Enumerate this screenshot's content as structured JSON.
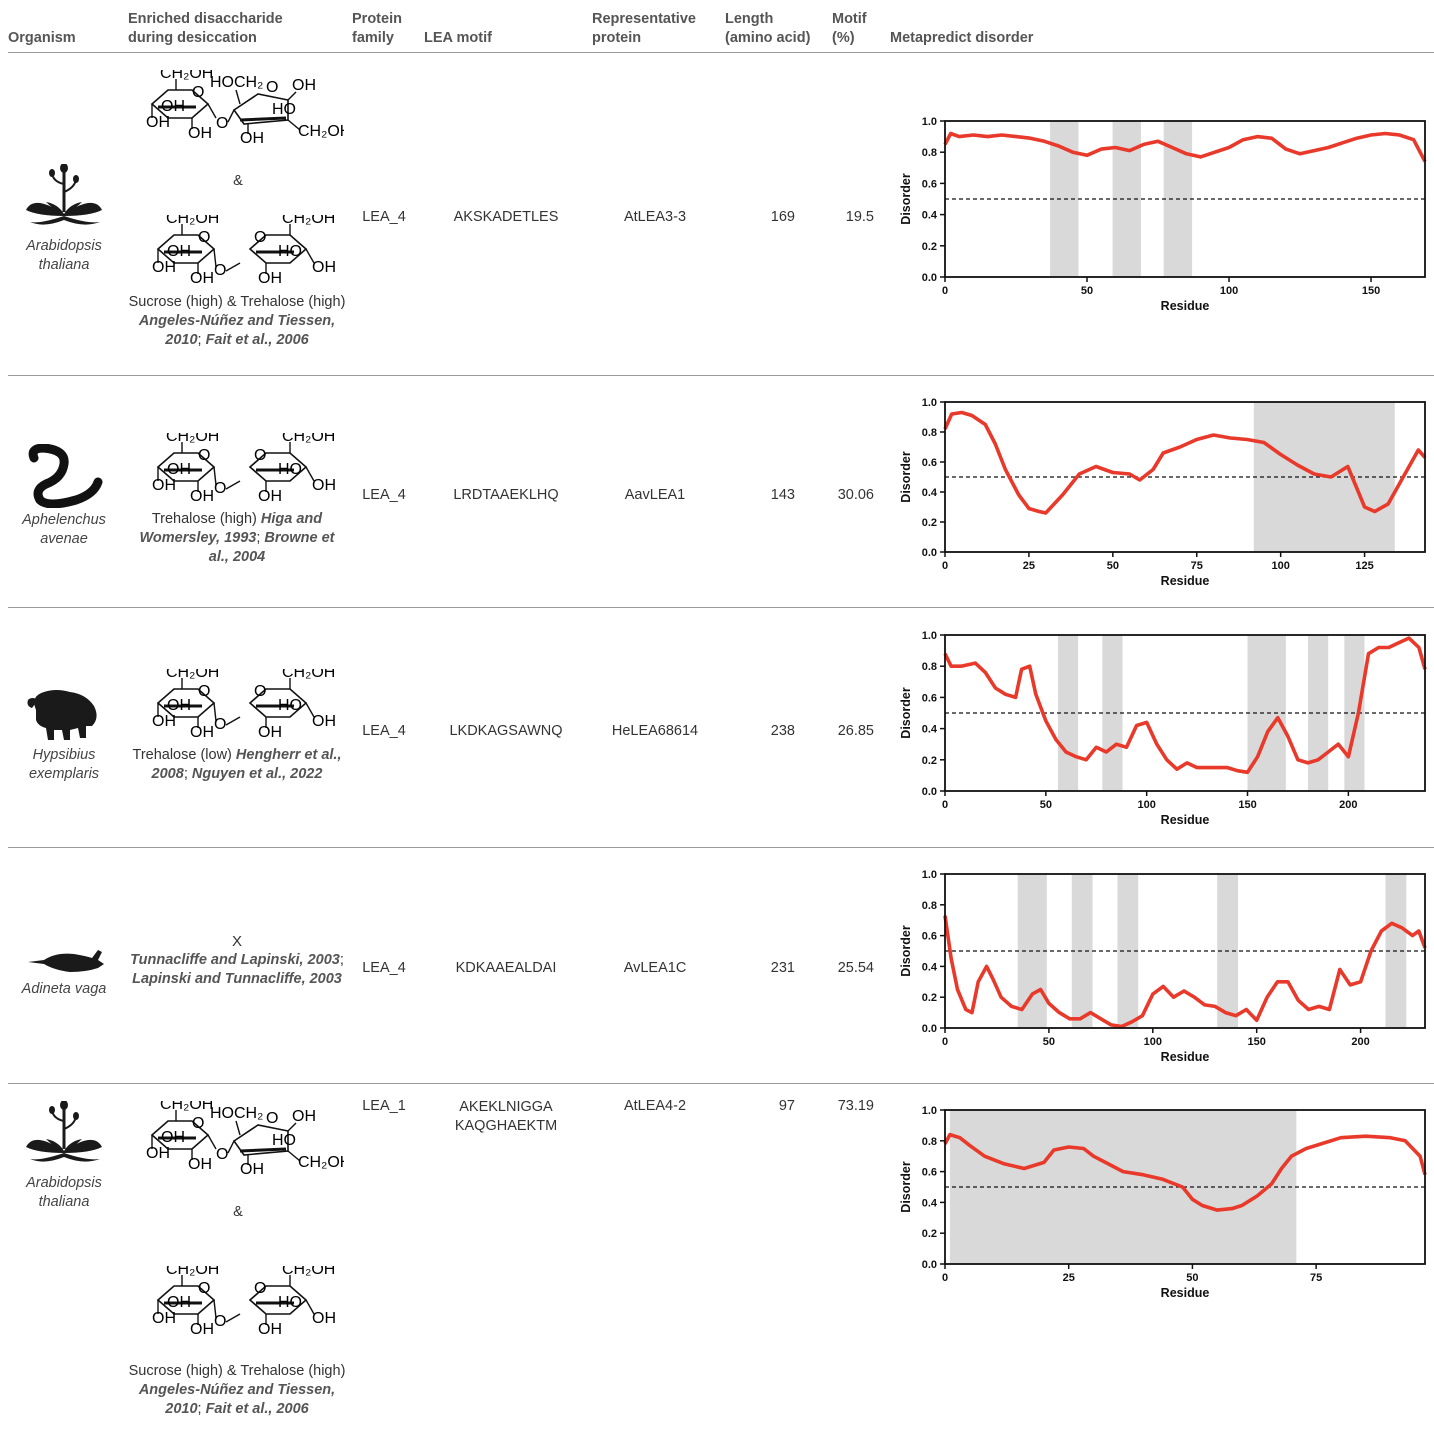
{
  "headers": {
    "organism": "Organism",
    "disaccharide": [
      "Enriched disaccharide",
      "during desiccation"
    ],
    "family": [
      "Protein",
      "family"
    ],
    "motif": "LEA motif",
    "representative": [
      "Representative",
      "protein"
    ],
    "length": [
      "Length",
      "(amino acid)"
    ],
    "motif_pct": [
      "Motif",
      "(%)"
    ],
    "metapredict": "Metapredict disorder"
  },
  "rows": [
    {
      "organism": [
        "Arabidopsis",
        "thaliana"
      ],
      "organism_icon": "plant-silhouette-icon",
      "sugars": "sucrose-and-trehalose",
      "amp": "&",
      "sugar_text": "Sucrose (high) & Trehalose (high)",
      "refs": [
        "Angeles-Núñez and Tiessen, 2010",
        "Fait et al., 2006"
      ],
      "family": "LEA_4",
      "motif": "AKSKADETLES",
      "protein": "AtLEA3-3",
      "length": "169",
      "motif_pct": "19.5"
    },
    {
      "organism": [
        "Aphelenchus",
        "avenae"
      ],
      "organism_icon": "nematode-silhouette-icon",
      "sugars": "trehalose",
      "sugar_text": "Trehalose (high)",
      "refs": [
        "Higa and Womersley, 1993",
        "Browne et al., 2004"
      ],
      "family": "LEA_4",
      "motif": "LRDTAAEKLHQ",
      "protein": "AavLEA1",
      "length": "143",
      "motif_pct": "30.06"
    },
    {
      "organism": [
        "Hypsibius",
        "exemplaris"
      ],
      "organism_icon": "tardigrade-silhouette-icon",
      "sugars": "trehalose",
      "sugar_text": "Trehalose (low)",
      "refs": [
        "Hengherr et al., 2008",
        "Nguyen et al., 2022"
      ],
      "family": "LEA_4",
      "motif": "LKDKAGSAWNQ",
      "protein": "HeLEA68614",
      "length": "238",
      "motif_pct": "26.85"
    },
    {
      "organism": [
        "Adineta vaga"
      ],
      "organism_icon": "rotifer-silhouette-icon",
      "sugars": "none",
      "sugar_text": "X",
      "refs": [
        "Tunnacliffe and Lapinski, 2003",
        "Lapinski and Tunnacliffe, 2003"
      ],
      "family": "LEA_4",
      "motif": "KDKAAEALDAI",
      "protein": "AvLEA1C",
      "length": "231",
      "motif_pct": "25.54"
    },
    {
      "organism": [
        "Arabidopsis",
        "thaliana"
      ],
      "organism_icon": "plant-silhouette-icon",
      "sugars": "sucrose-and-trehalose",
      "amp": "&",
      "sugar_text": "Sucrose (high) & Trehalose (high)",
      "refs": [
        "Angeles-Núñez and Tiessen, 2010",
        "Fait et al., 2006"
      ],
      "family": "LEA_1",
      "motif": [
        "AKEKLNIGGA",
        "KAQGHAEKTM"
      ],
      "protein": "AtLEA4-2",
      "length": "97",
      "motif_pct": "73.19"
    }
  ],
  "chart_data": [
    {
      "type": "line",
      "xlabel": "Residue",
      "ylabel": "Disorder",
      "xlim": [
        0,
        169
      ],
      "ylim": [
        0,
        1.0
      ],
      "xticks": [
        0,
        50,
        100,
        150
      ],
      "yticks": [
        0.0,
        0.2,
        0.4,
        0.6,
        0.8,
        1.0
      ],
      "threshold": 0.5,
      "motif_regions": [
        [
          37,
          47
        ],
        [
          59,
          69
        ],
        [
          77,
          87
        ]
      ],
      "line_color": "#e8392a",
      "x": [
        0,
        2,
        5,
        10,
        15,
        20,
        25,
        30,
        35,
        40,
        45,
        50,
        55,
        60,
        65,
        70,
        75,
        80,
        85,
        90,
        95,
        100,
        105,
        110,
        115,
        120,
        125,
        130,
        135,
        140,
        145,
        150,
        155,
        160,
        165,
        169
      ],
      "y": [
        0.85,
        0.92,
        0.9,
        0.91,
        0.9,
        0.91,
        0.9,
        0.89,
        0.87,
        0.84,
        0.8,
        0.78,
        0.82,
        0.83,
        0.81,
        0.85,
        0.87,
        0.83,
        0.79,
        0.77,
        0.8,
        0.83,
        0.88,
        0.9,
        0.89,
        0.82,
        0.79,
        0.81,
        0.83,
        0.86,
        0.89,
        0.91,
        0.92,
        0.91,
        0.88,
        0.74
      ]
    },
    {
      "type": "line",
      "xlabel": "Residue",
      "ylabel": "Disorder",
      "xlim": [
        0,
        143
      ],
      "ylim": [
        0,
        1.0
      ],
      "xticks": [
        0,
        25,
        50,
        75,
        100,
        125
      ],
      "yticks": [
        0.0,
        0.2,
        0.4,
        0.6,
        0.8,
        1.0
      ],
      "threshold": 0.5,
      "motif_regions": [
        [
          92,
          134
        ]
      ],
      "line_color": "#e8392a",
      "x": [
        0,
        2,
        5,
        8,
        12,
        15,
        18,
        22,
        25,
        28,
        30,
        35,
        40,
        45,
        50,
        55,
        58,
        62,
        65,
        70,
        75,
        80,
        85,
        90,
        95,
        100,
        105,
        110,
        115,
        120,
        125,
        128,
        132,
        137,
        141,
        143
      ],
      "y": [
        0.82,
        0.92,
        0.93,
        0.91,
        0.85,
        0.72,
        0.55,
        0.38,
        0.29,
        0.27,
        0.26,
        0.38,
        0.52,
        0.57,
        0.53,
        0.52,
        0.48,
        0.55,
        0.66,
        0.7,
        0.75,
        0.78,
        0.76,
        0.75,
        0.73,
        0.65,
        0.58,
        0.52,
        0.5,
        0.57,
        0.3,
        0.27,
        0.32,
        0.52,
        0.68,
        0.63
      ]
    },
    {
      "type": "line",
      "xlabel": "Residue",
      "ylabel": "Disorder",
      "xlim": [
        0,
        238
      ],
      "ylim": [
        0,
        1.0
      ],
      "xticks": [
        0,
        50,
        100,
        150,
        200
      ],
      "yticks": [
        0.0,
        0.2,
        0.4,
        0.6,
        0.8,
        1.0
      ],
      "threshold": 0.5,
      "motif_regions": [
        [
          56,
          66
        ],
        [
          78,
          88
        ],
        [
          150,
          169
        ],
        [
          180,
          190
        ],
        [
          198,
          208
        ]
      ],
      "line_color": "#e8392a",
      "x": [
        0,
        3,
        8,
        15,
        20,
        25,
        30,
        35,
        38,
        42,
        45,
        50,
        55,
        60,
        65,
        70,
        75,
        80,
        85,
        90,
        95,
        100,
        105,
        110,
        115,
        120,
        125,
        130,
        135,
        140,
        145,
        150,
        155,
        160,
        165,
        170,
        175,
        180,
        185,
        190,
        195,
        200,
        205,
        210,
        215,
        220,
        225,
        230,
        235,
        238
      ],
      "y": [
        0.88,
        0.8,
        0.8,
        0.82,
        0.76,
        0.66,
        0.62,
        0.6,
        0.78,
        0.8,
        0.62,
        0.45,
        0.33,
        0.25,
        0.22,
        0.2,
        0.28,
        0.25,
        0.3,
        0.28,
        0.42,
        0.44,
        0.3,
        0.2,
        0.14,
        0.18,
        0.15,
        0.15,
        0.15,
        0.15,
        0.13,
        0.12,
        0.22,
        0.38,
        0.47,
        0.35,
        0.2,
        0.18,
        0.2,
        0.25,
        0.3,
        0.22,
        0.5,
        0.88,
        0.92,
        0.92,
        0.95,
        0.98,
        0.92,
        0.78
      ]
    },
    {
      "type": "line",
      "xlabel": "Residue",
      "ylabel": "Disorder",
      "xlim": [
        0,
        231
      ],
      "ylim": [
        0,
        1.0
      ],
      "xticks": [
        0,
        50,
        100,
        150,
        200
      ],
      "yticks": [
        0.0,
        0.2,
        0.4,
        0.6,
        0.8,
        1.0
      ],
      "threshold": 0.5,
      "motif_regions": [
        [
          35,
          49
        ],
        [
          61,
          71
        ],
        [
          83,
          93
        ],
        [
          131,
          141
        ],
        [
          212,
          222
        ]
      ],
      "line_color": "#e8392a",
      "x": [
        0,
        3,
        6,
        10,
        13,
        16,
        20,
        23,
        27,
        32,
        37,
        42,
        46,
        50,
        55,
        60,
        65,
        70,
        75,
        80,
        85,
        90,
        95,
        100,
        105,
        110,
        115,
        120,
        125,
        130,
        135,
        140,
        145,
        150,
        155,
        160,
        165,
        170,
        175,
        180,
        185,
        190,
        195,
        200,
        205,
        210,
        215,
        220,
        225,
        228,
        231
      ],
      "y": [
        0.73,
        0.45,
        0.25,
        0.12,
        0.1,
        0.3,
        0.4,
        0.32,
        0.2,
        0.14,
        0.12,
        0.22,
        0.25,
        0.16,
        0.1,
        0.06,
        0.06,
        0.1,
        0.06,
        0.02,
        0.01,
        0.04,
        0.08,
        0.22,
        0.27,
        0.2,
        0.24,
        0.2,
        0.15,
        0.14,
        0.1,
        0.08,
        0.12,
        0.05,
        0.2,
        0.3,
        0.3,
        0.18,
        0.12,
        0.14,
        0.12,
        0.38,
        0.28,
        0.3,
        0.5,
        0.63,
        0.68,
        0.65,
        0.6,
        0.63,
        0.52
      ]
    },
    {
      "type": "line",
      "xlabel": "Residue",
      "ylabel": "Disorder",
      "xlim": [
        0,
        97
      ],
      "ylim": [
        0,
        1.0
      ],
      "xticks": [
        0,
        25,
        50,
        75
      ],
      "yticks": [
        0.0,
        0.2,
        0.4,
        0.6,
        0.8,
        1.0
      ],
      "threshold": 0.5,
      "motif_regions": [
        [
          1,
          71
        ]
      ],
      "line_color": "#e8392a",
      "x": [
        0,
        1,
        3,
        5,
        8,
        12,
        16,
        20,
        22,
        25,
        28,
        30,
        33,
        36,
        40,
        44,
        48,
        50,
        52,
        55,
        58,
        60,
        63,
        66,
        68,
        70,
        73,
        76,
        80,
        85,
        90,
        93,
        96,
        97
      ],
      "y": [
        0.78,
        0.84,
        0.82,
        0.77,
        0.7,
        0.65,
        0.62,
        0.66,
        0.74,
        0.76,
        0.75,
        0.7,
        0.65,
        0.6,
        0.58,
        0.55,
        0.5,
        0.42,
        0.38,
        0.35,
        0.36,
        0.38,
        0.44,
        0.52,
        0.62,
        0.7,
        0.75,
        0.78,
        0.82,
        0.83,
        0.82,
        0.8,
        0.7,
        0.58
      ]
    }
  ]
}
